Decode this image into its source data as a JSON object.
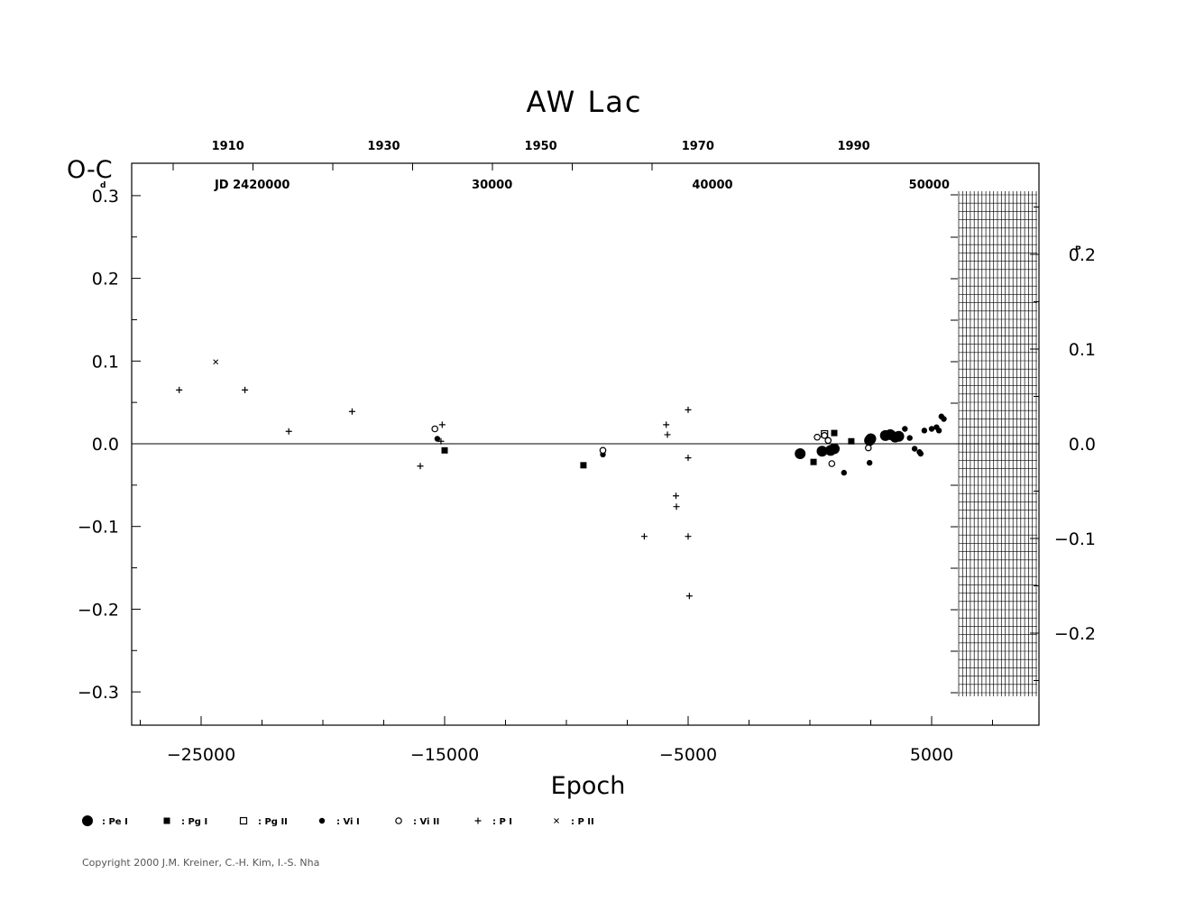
{
  "chart_data": {
    "type": "scatter",
    "title": "AW  Lac",
    "xlabel": "Epoch",
    "ylabel": "O-C",
    "ylabel_unit": "d",
    "right_axis_unit": "P",
    "xlim": [
      -28000,
      9000
    ],
    "ylim": [
      -0.34,
      0.34
    ],
    "x_ticks": [
      -25000,
      -15000,
      -5000,
      5000
    ],
    "y_ticks": [
      0.3,
      0.2,
      0.1,
      0.0,
      -0.1,
      -0.2,
      -0.3
    ],
    "y_tick_labels": [
      "0.3",
      "0.2",
      "0.1",
      "0.0",
      "−0.1",
      "−0.2",
      "−0.3"
    ],
    "right_ticks": [
      0.2,
      0.1,
      0.0,
      -0.1,
      -0.2
    ],
    "right_tick_labels": [
      "0.2",
      "0.1",
      "0.0",
      "−0.1",
      "−0.2"
    ],
    "period_days": 1.0,
    "top_year_ticks": [
      {
        "label": "1910",
        "epoch": -23900
      },
      {
        "label": "1930",
        "epoch": -17500
      },
      {
        "label": "1950",
        "epoch": -11050
      },
      {
        "label": "1970",
        "epoch": -4600
      },
      {
        "label": "1990",
        "epoch": 1800
      }
    ],
    "top_jd_ticks": [
      {
        "label": "JD  2420000",
        "epoch": -22900
      },
      {
        "label": "30000",
        "epoch": -13050
      },
      {
        "label": "40000",
        "epoch": -4000
      },
      {
        "label": "50000",
        "epoch": 4900
      }
    ],
    "grid": false,
    "legend_position": "bottom-left",
    "legend": [
      {
        "key": "PeI",
        "label": ": Pe  I"
      },
      {
        "key": "PgI",
        "label": ": Pg  I"
      },
      {
        "key": "PgII",
        "label": ": Pg  II"
      },
      {
        "key": "VII",
        "label": ": Vi  I"
      },
      {
        "key": "VIII",
        "label": ": Vi  II"
      },
      {
        "key": "PI",
        "label": ": P  I"
      },
      {
        "key": "PII",
        "label": ": P  II"
      }
    ],
    "series": [
      {
        "name": "Pe I",
        "key": "PeI",
        "marker": "circle-filled-large",
        "points": [
          [
            -400,
            -0.012
          ],
          [
            500,
            -0.009
          ],
          [
            850,
            -0.008
          ],
          [
            1000,
            -0.006
          ],
          [
            2500,
            0.006
          ],
          [
            2450,
            0.004
          ],
          [
            3100,
            0.01
          ],
          [
            3300,
            0.011
          ],
          [
            3500,
            0.008
          ],
          [
            3650,
            0.009
          ]
        ]
      },
      {
        "name": "Pg I",
        "key": "PgI",
        "marker": "square-filled",
        "points": [
          [
            -15000,
            -0.008
          ],
          [
            -9300,
            -0.026
          ],
          [
            150,
            -0.022
          ],
          [
            1000,
            0.013
          ],
          [
            1700,
            0.003
          ]
        ]
      },
      {
        "name": "Pg II",
        "key": "PgII",
        "marker": "square-open",
        "points": [
          [
            600,
            0.012
          ]
        ]
      },
      {
        "name": "Vi I",
        "key": "VII",
        "marker": "circle-filled-small",
        "points": [
          [
            -15300,
            0.006
          ],
          [
            -8500,
            -0.013
          ],
          [
            1400,
            -0.035
          ],
          [
            2450,
            -0.023
          ],
          [
            3900,
            0.018
          ],
          [
            4300,
            -0.006
          ],
          [
            4500,
            -0.01
          ],
          [
            4550,
            -0.012
          ],
          [
            4700,
            0.016
          ],
          [
            5000,
            0.018
          ],
          [
            5200,
            0.02
          ],
          [
            5300,
            0.016
          ],
          [
            5400,
            0.033
          ],
          [
            5500,
            0.03
          ],
          [
            4100,
            0.007
          ]
        ]
      },
      {
        "name": "Vi II",
        "key": "VIII",
        "marker": "circle-open",
        "points": [
          [
            -15400,
            0.018
          ],
          [
            -8500,
            -0.008
          ],
          [
            300,
            0.008
          ],
          [
            750,
            0.004
          ],
          [
            900,
            -0.024
          ],
          [
            2400,
            -0.005
          ],
          [
            600,
            0.01
          ]
        ]
      },
      {
        "name": "P I",
        "key": "PI",
        "marker": "plus",
        "points": [
          [
            -25900,
            0.065
          ],
          [
            -23200,
            0.065
          ],
          [
            -21400,
            0.015
          ],
          [
            -18800,
            0.039
          ],
          [
            -16000,
            -0.027
          ],
          [
            -15100,
            0.023
          ],
          [
            -15150,
            0.003
          ],
          [
            -6800,
            -0.112
          ],
          [
            -5900,
            0.023
          ],
          [
            -5850,
            0.011
          ],
          [
            -5500,
            -0.063
          ],
          [
            -5480,
            -0.076
          ],
          [
            -5000,
            0.041
          ],
          [
            -5000,
            -0.017
          ],
          [
            -5000,
            -0.112
          ],
          [
            -4950,
            -0.184
          ]
        ]
      },
      {
        "name": "P II",
        "key": "PII",
        "marker": "cross",
        "points": [
          [
            -24400,
            0.099
          ]
        ]
      }
    ]
  },
  "copyright": "Copyright 2000 J.M. Kreiner, C.-H. Kim, I.-S. Nha"
}
